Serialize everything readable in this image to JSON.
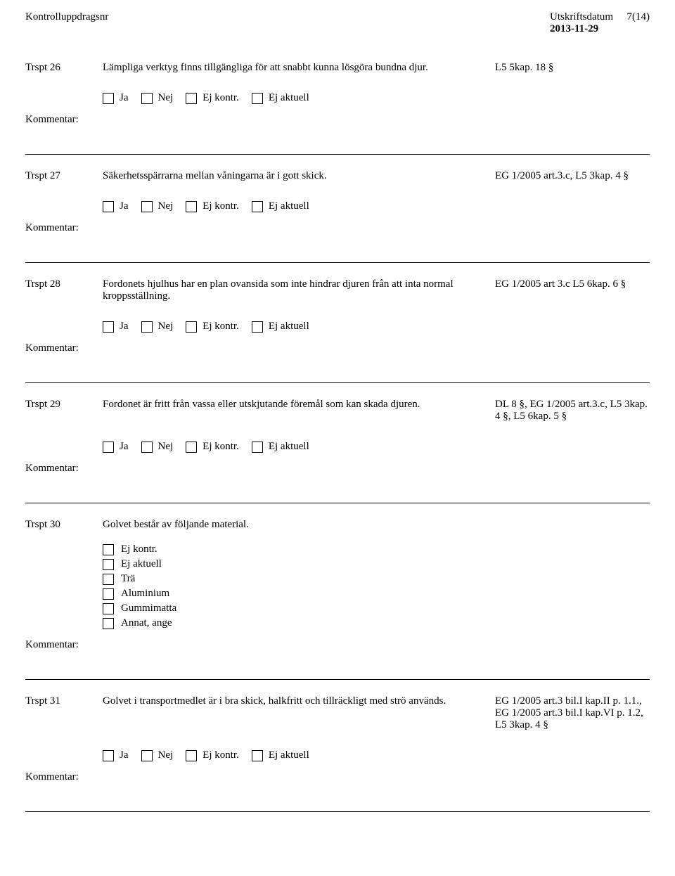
{
  "header": {
    "left_label": "Kontrolluppdragsnr",
    "right_label": "Utskriftsdatum",
    "date": "2013-11-29",
    "page": "7(14)"
  },
  "labels": {
    "kommentar": "Kommentar:",
    "ja": "Ja",
    "nej": "Nej",
    "ej_kontr": "Ej kontr.",
    "ej_aktuell": "Ej aktuell"
  },
  "questions": [
    {
      "id": "Trspt 26",
      "text": "Lämpliga verktyg finns tillgängliga för att snabbt kunna lösgöra bundna djur.",
      "ref": "L5  5kap. 18 §",
      "style": "yesno"
    },
    {
      "id": "Trspt 27",
      "text": "Säkerhetsspärrarna mellan våningarna är i gott skick.",
      "ref": "EG 1/2005 art.3.c, L5  3kap. 4 §",
      "style": "yesno"
    },
    {
      "id": "Trspt 28",
      "text": "Fordonets hjulhus har en plan ovansida som inte hindrar djuren från att inta normal kroppsställning.",
      "ref": "EG 1/2005 art 3.c L5  6kap. 6 §",
      "style": "yesno"
    },
    {
      "id": "Trspt 29",
      "text": "Fordonet är fritt från vassa eller utskjutande föremål som kan skada djuren.",
      "ref": "DL 8 §, EG 1/2005 art.3.c, L5 3kap. 4 §, L5  6kap. 5 §",
      "style": "yesno"
    },
    {
      "id": "Trspt 30",
      "text": "Golvet består av följande material.",
      "ref": "",
      "style": "vertical",
      "options": [
        "Ej kontr.",
        "Ej aktuell",
        "Trä",
        "Aluminium",
        "Gummimatta",
        "Annat, ange"
      ]
    },
    {
      "id": "Trspt 31",
      "text": "Golvet i transportmedlet är i bra skick, halkfritt och tillräckligt med strö används.",
      "ref": "EG 1/2005 art.3 bil.I kap.II p. 1.1., EG 1/2005 art.3 bil.I kap.VI p. 1.2, L5  3kap. 4 §",
      "style": "yesno"
    }
  ]
}
